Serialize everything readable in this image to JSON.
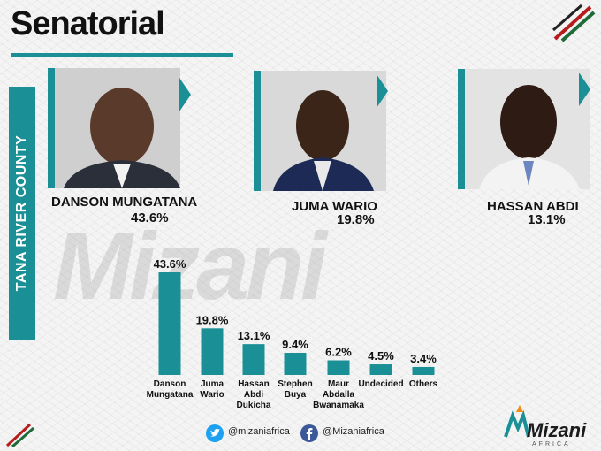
{
  "header": {
    "title": "Senatorial",
    "county": "TANA RIVER COUNTY"
  },
  "watermark": "Mizani",
  "candidates": [
    {
      "name": "DANSON MUNGATANA",
      "percent": "43.6%"
    },
    {
      "name": "JUMA WARIO",
      "percent": "19.8%"
    },
    {
      "name": "HASSAN ABDI",
      "percent": "13.1%"
    }
  ],
  "chart_data": {
    "type": "bar",
    "categories": [
      [
        "Danson",
        "Mungatana"
      ],
      [
        "Juma",
        "Wario"
      ],
      [
        "Hassan",
        "Abdi",
        "Dukicha"
      ],
      [
        "Stephen",
        "Buya"
      ],
      [
        "Maur",
        "Abdalla",
        "Bwanamaka"
      ],
      [
        "Undecided"
      ],
      [
        "Others"
      ]
    ],
    "values": [
      43.6,
      19.8,
      13.1,
      9.4,
      6.2,
      4.5,
      3.4
    ],
    "value_labels": [
      "43.6%",
      "19.8%",
      "13.1%",
      "9.4%",
      "6.2%",
      "4.5%",
      "3.4%"
    ],
    "color": "#1a8f96",
    "title": "",
    "xlabel": "",
    "ylabel": "",
    "ylim": [
      0,
      43.6
    ],
    "grid": false,
    "legend": "none"
  },
  "footer": {
    "twitter": "@mizaniafrica",
    "facebook": "@Mizaniafrica"
  },
  "brand": {
    "name": "Mizani",
    "sub": "AFRICA"
  },
  "colors": {
    "accent": "#1a8f96",
    "kenya_red": "#b71c1c",
    "kenya_green": "#1e6b3a"
  },
  "icons": [
    "twitter-icon",
    "facebook-icon"
  ]
}
